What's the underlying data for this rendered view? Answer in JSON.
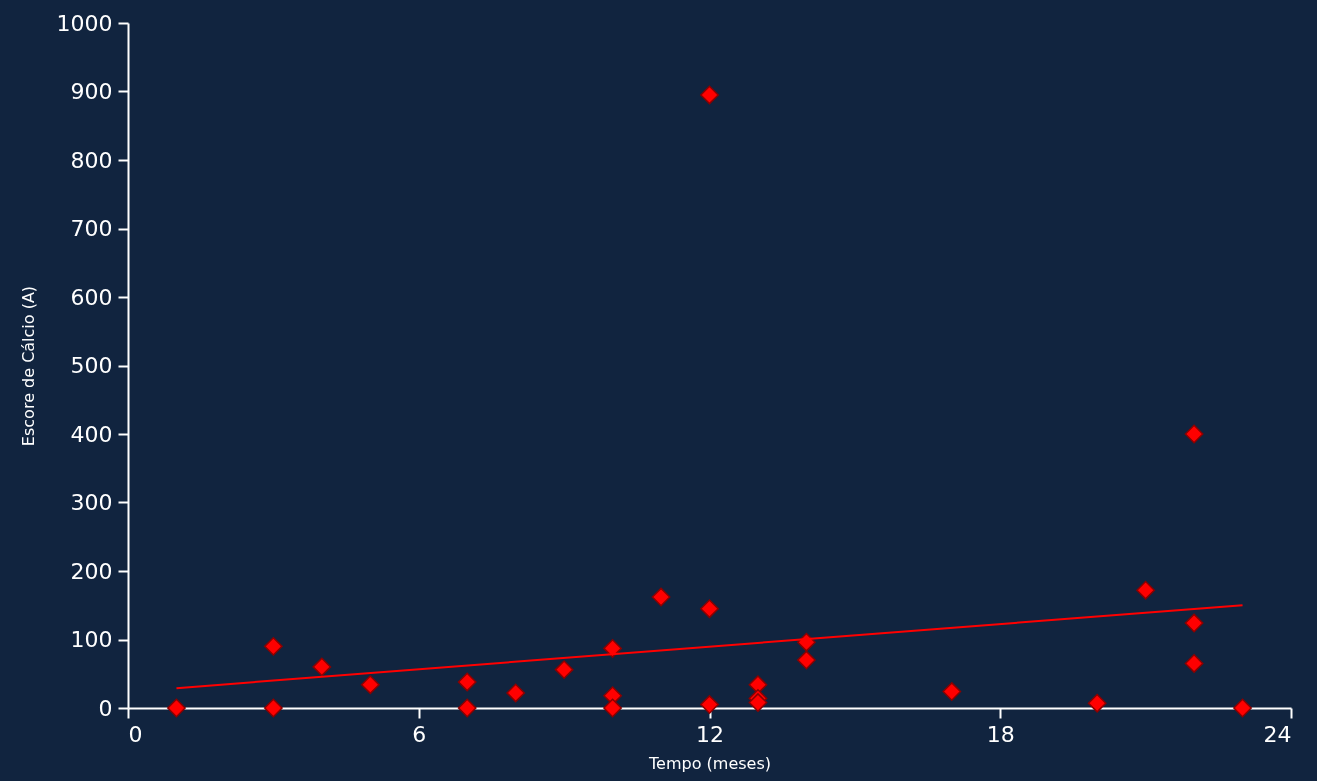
{
  "chart_data": {
    "type": "scatter",
    "xlabel": "Tempo (meses)",
    "ylabel": "Escore de Cálcio (A)",
    "xlim": [
      0,
      24
    ],
    "xticks": [
      0,
      6,
      12,
      18,
      24
    ],
    "ylim": [
      0,
      1000
    ],
    "yticks": [
      0,
      100,
      200,
      300,
      400,
      500,
      600,
      700,
      800,
      900,
      1000
    ],
    "grid": false,
    "series": [
      {
        "color": "#ff0000",
        "marker": "diamond",
        "x": [
          1,
          3,
          3,
          4,
          5,
          7,
          7,
          8,
          9,
          10,
          10,
          10,
          11,
          12,
          12,
          12,
          13,
          13,
          13,
          14,
          14,
          17,
          20,
          21,
          22,
          22,
          22,
          23
        ],
        "values": [
          0,
          90,
          0,
          60,
          34,
          38,
          0,
          22,
          56,
          87,
          18,
          0,
          162,
          895,
          145,
          5,
          34,
          14,
          8,
          96,
          70,
          24,
          7,
          172,
          400,
          124,
          65,
          0
        ]
      },
      {
        "type": "line",
        "color": "#ff0000",
        "marker": "none",
        "line_style": "solid",
        "x": [
          1,
          23
        ],
        "values": [
          29,
          150
        ]
      }
    ]
  }
}
